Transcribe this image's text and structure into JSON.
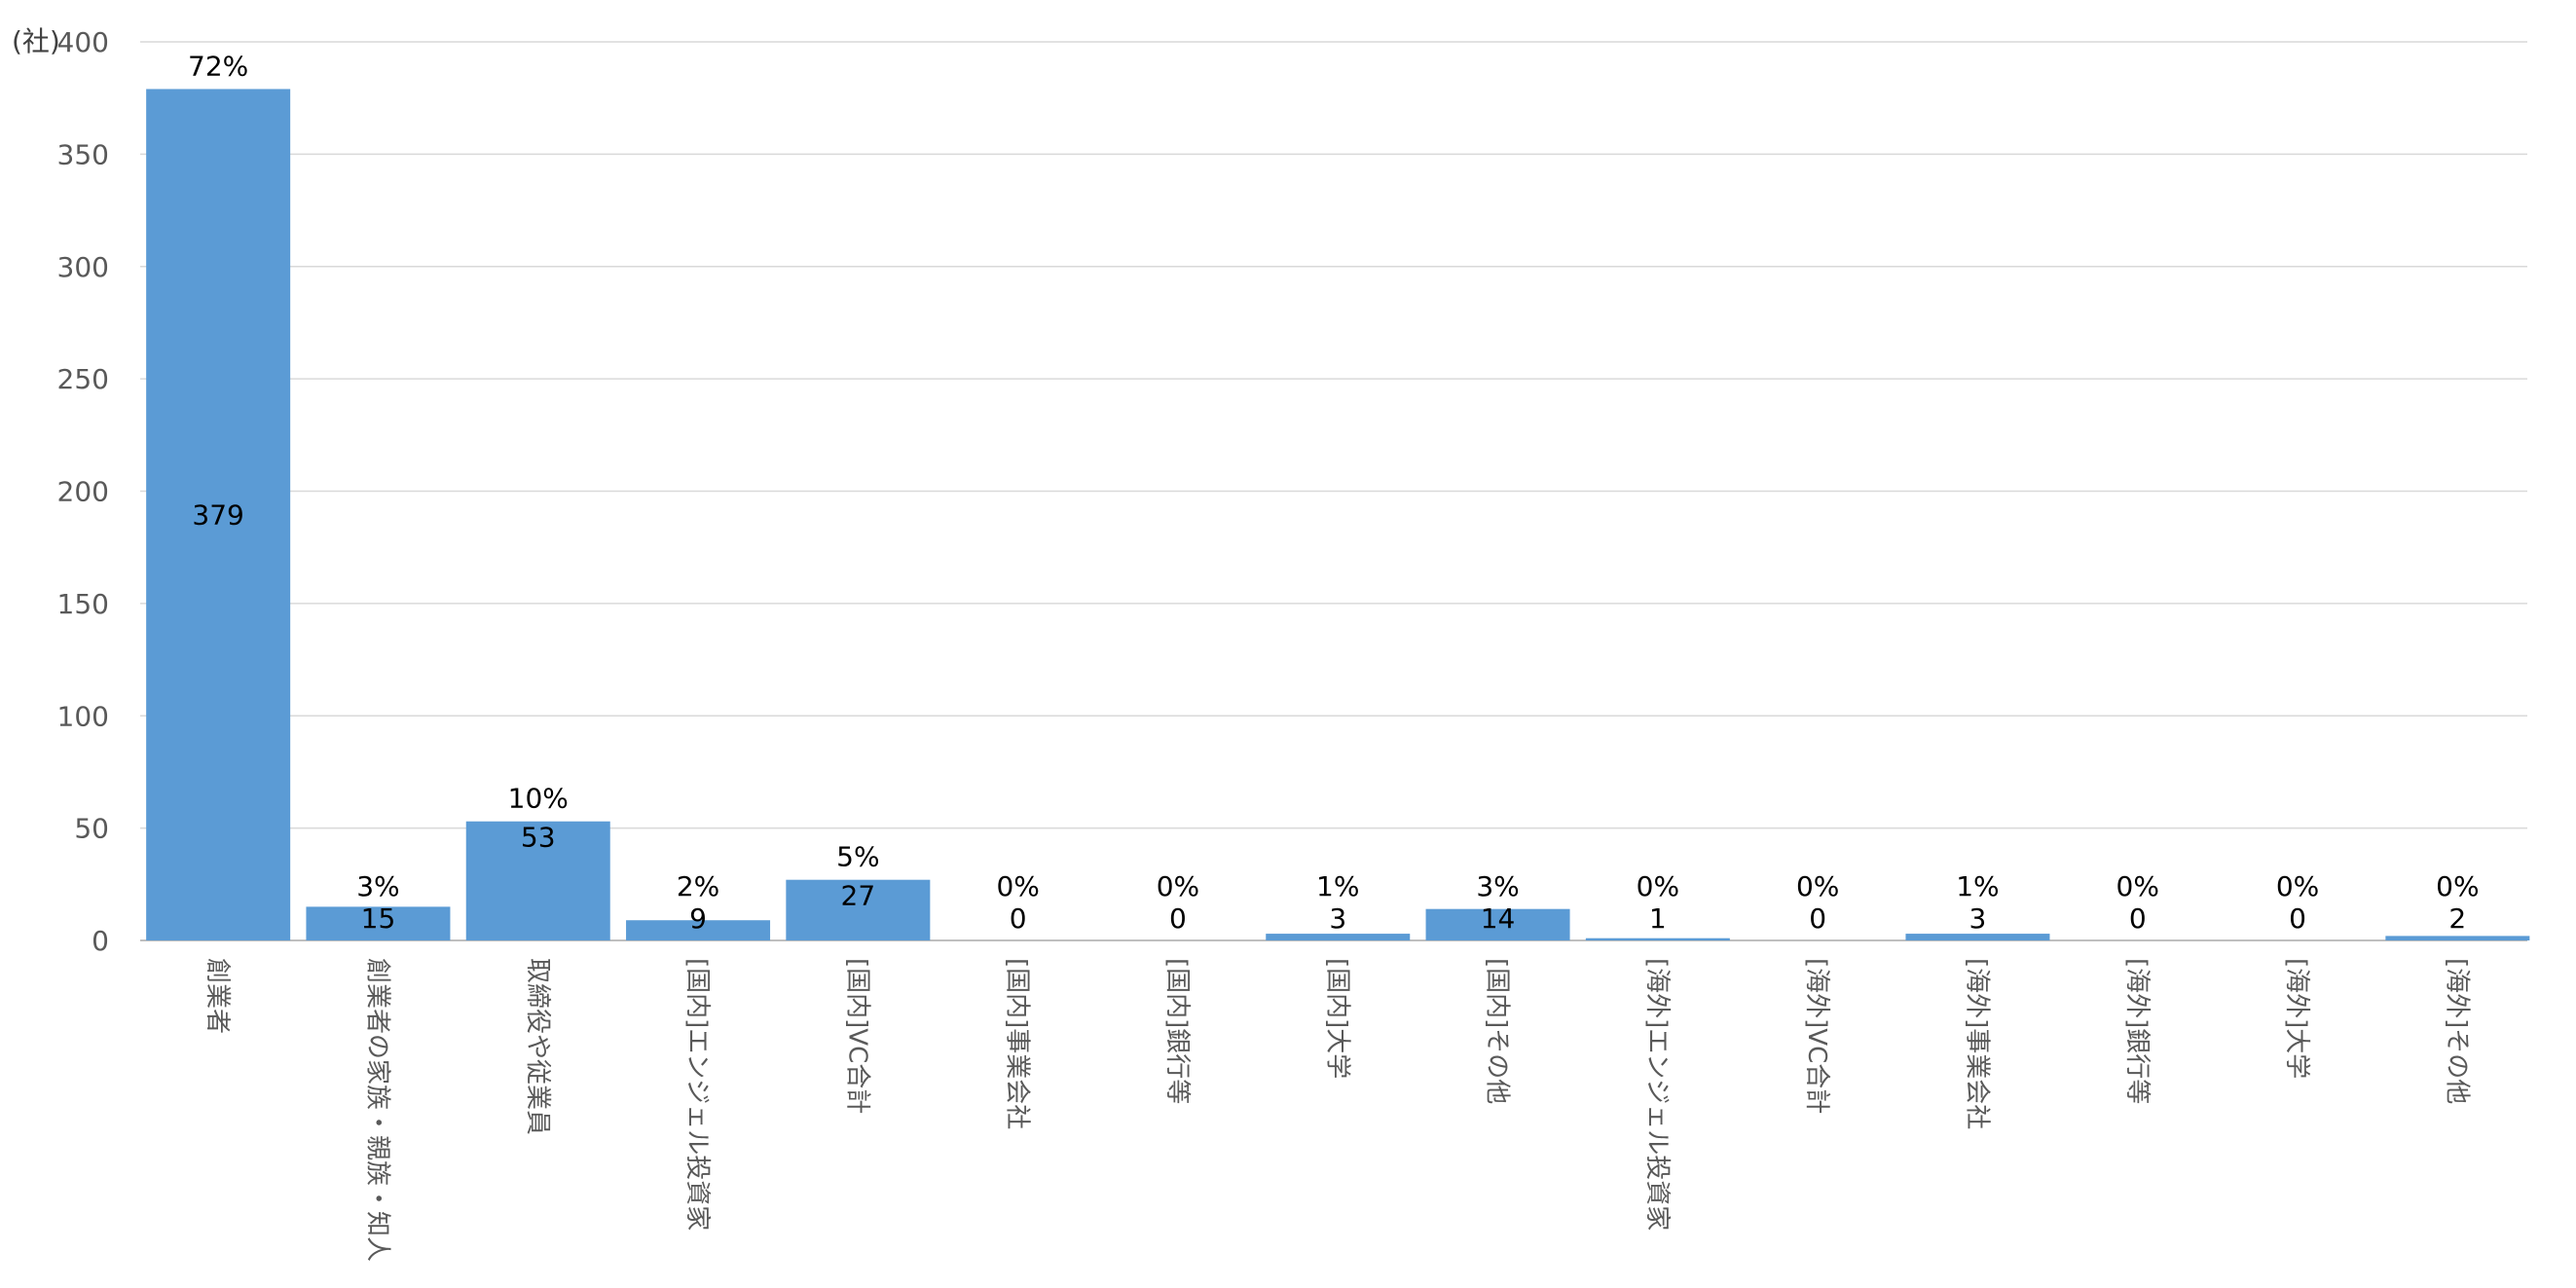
{
  "chart_data": {
    "type": "bar",
    "unit_label": "(社)",
    "ylim": [
      0,
      400
    ],
    "yticks": [
      0,
      50,
      100,
      150,
      200,
      250,
      300,
      350,
      400
    ],
    "grid": true,
    "bar_color": "#5b9bd5",
    "categories": [
      "創業者",
      "創業者の家族・親族・知人",
      "取締役や従業員",
      "[国内]エンジェル投資家",
      "[国内]VC合計",
      "[国内]事業会社",
      "[国内]銀行等",
      "[国内]大学",
      "[国内]その他",
      "[海外]エンジェル投資家",
      "[海外]VC合計",
      "[海外]事業会社",
      "[海外]銀行等",
      "[海外]大学",
      "[海外]その他"
    ],
    "values": [
      379,
      15,
      53,
      9,
      27,
      0,
      0,
      3,
      14,
      1,
      0,
      3,
      0,
      0,
      2
    ],
    "percent_labels": [
      "72%",
      "3%",
      "10%",
      "2%",
      "5%",
      "0%",
      "0%",
      "1%",
      "3%",
      "0%",
      "0%",
      "1%",
      "0%",
      "0%",
      "0%"
    ]
  }
}
